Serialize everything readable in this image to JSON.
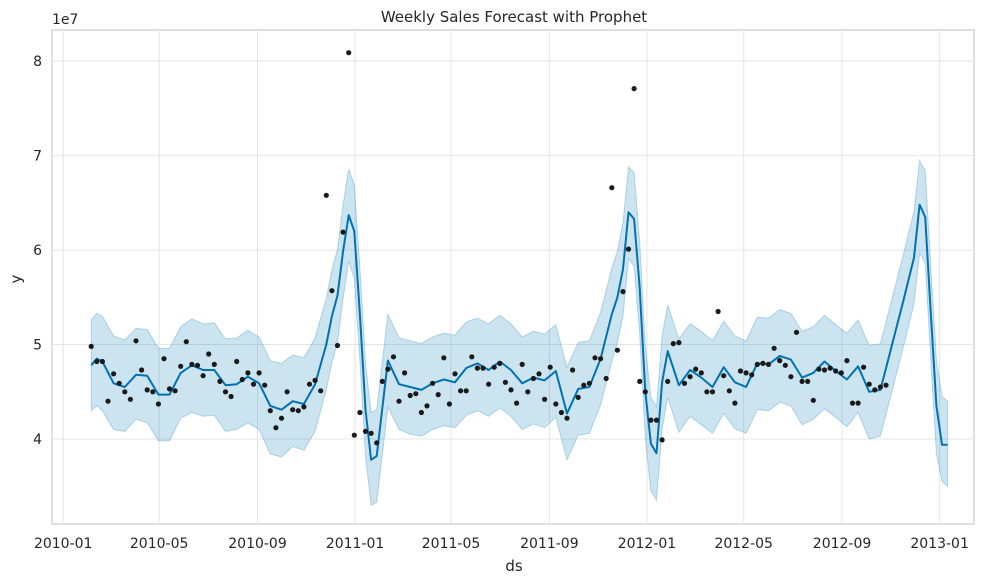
{
  "chart_data": {
    "type": "line",
    "title": "Weekly Sales Forecast with Prophet",
    "xlabel": "ds",
    "ylabel": "y",
    "y_offset_label": "1e7",
    "xlim": [
      "2009-12-18",
      "2013-02-13"
    ],
    "ylim": [
      3.1,
      8.33
    ],
    "grid": true,
    "x_tick_labels": [
      "2010-01",
      "2010-05",
      "2010-09",
      "2011-01",
      "2011-05",
      "2011-09",
      "2012-01",
      "2012-05",
      "2012-09",
      "2013-01"
    ],
    "x_tick_dates": [
      "2010-01-01",
      "2010-05-01",
      "2010-09-01",
      "2011-01-01",
      "2011-05-01",
      "2011-09-01",
      "2012-01-01",
      "2012-05-01",
      "2012-09-01",
      "2013-01-01"
    ],
    "y_ticks": [
      4,
      5,
      6,
      7,
      8
    ],
    "colors": {
      "forecast_line": "#0072b2",
      "interval_fill": "#0072b2",
      "actual_points": "#1a1a1a",
      "grid": "#e5e5e5",
      "axes": "#cccccc"
    },
    "series": [
      {
        "kind": "actual",
        "x": [
          "2010-02-05",
          "2010-02-12",
          "2010-02-19",
          "2010-02-26",
          "2010-03-05",
          "2010-03-12",
          "2010-03-19",
          "2010-03-26",
          "2010-04-02",
          "2010-04-09",
          "2010-04-16",
          "2010-04-23",
          "2010-04-30",
          "2010-05-07",
          "2010-05-14",
          "2010-05-21",
          "2010-05-28",
          "2010-06-04",
          "2010-06-11",
          "2010-06-18",
          "2010-06-25",
          "2010-07-02",
          "2010-07-09",
          "2010-07-16",
          "2010-07-23",
          "2010-07-30",
          "2010-08-06",
          "2010-08-13",
          "2010-08-20",
          "2010-08-27",
          "2010-09-03",
          "2010-09-10",
          "2010-09-17",
          "2010-09-24",
          "2010-10-01",
          "2010-10-08",
          "2010-10-15",
          "2010-10-22",
          "2010-10-29",
          "2010-11-05",
          "2010-11-12",
          "2010-11-19",
          "2010-11-26",
          "2010-12-03",
          "2010-12-10",
          "2010-12-17",
          "2010-12-24",
          "2010-12-31",
          "2011-01-07",
          "2011-01-14",
          "2011-01-21",
          "2011-01-28",
          "2011-02-04",
          "2011-02-11",
          "2011-02-18",
          "2011-02-25",
          "2011-03-04",
          "2011-03-11",
          "2011-03-18",
          "2011-03-25",
          "2011-04-01",
          "2011-04-08",
          "2011-04-15",
          "2011-04-22",
          "2011-04-29",
          "2011-05-06",
          "2011-05-13",
          "2011-05-20",
          "2011-05-27",
          "2011-06-03",
          "2011-06-10",
          "2011-06-17",
          "2011-06-24",
          "2011-07-01",
          "2011-07-08",
          "2011-07-15",
          "2011-07-22",
          "2011-07-29",
          "2011-08-05",
          "2011-08-12",
          "2011-08-19",
          "2011-08-26",
          "2011-09-02",
          "2011-09-09",
          "2011-09-16",
          "2011-09-23",
          "2011-09-30",
          "2011-10-07",
          "2011-10-14",
          "2011-10-21",
          "2011-10-28",
          "2011-11-04",
          "2011-11-11",
          "2011-11-18",
          "2011-11-25",
          "2011-12-02",
          "2011-12-09",
          "2011-12-16",
          "2011-12-23",
          "2011-12-30",
          "2012-01-06",
          "2012-01-13",
          "2012-01-20",
          "2012-01-27",
          "2012-02-03",
          "2012-02-10",
          "2012-02-17",
          "2012-02-24",
          "2012-03-02",
          "2012-03-09",
          "2012-03-16",
          "2012-03-23",
          "2012-03-30",
          "2012-04-06",
          "2012-04-13",
          "2012-04-20",
          "2012-04-27",
          "2012-05-04",
          "2012-05-11",
          "2012-05-18",
          "2012-05-25",
          "2012-06-01",
          "2012-06-08",
          "2012-06-15",
          "2012-06-22",
          "2012-06-29",
          "2012-07-06",
          "2012-07-13",
          "2012-07-20",
          "2012-07-27",
          "2012-08-03",
          "2012-08-10",
          "2012-08-17",
          "2012-08-24",
          "2012-08-31",
          "2012-09-07",
          "2012-09-14",
          "2012-09-21",
          "2012-09-28",
          "2012-10-05",
          "2012-10-12",
          "2012-10-19",
          "2012-10-26"
        ],
        "y": [
          4.98,
          4.82,
          4.82,
          4.4,
          4.69,
          4.59,
          4.5,
          4.42,
          5.04,
          4.73,
          4.52,
          4.5,
          4.37,
          4.85,
          4.53,
          4.51,
          4.77,
          5.03,
          4.79,
          4.78,
          4.67,
          4.9,
          4.79,
          4.61,
          4.5,
          4.45,
          4.82,
          4.63,
          4.7,
          4.58,
          4.7,
          4.57,
          4.3,
          4.12,
          4.22,
          4.5,
          4.31,
          4.3,
          4.34,
          4.58,
          4.62,
          4.51,
          6.58,
          5.57,
          4.99,
          6.19,
          8.09,
          4.04,
          4.28,
          4.08,
          4.06,
          3.96,
          4.61,
          4.74,
          4.87,
          4.4,
          4.7,
          4.46,
          4.48,
          4.28,
          4.35,
          4.59,
          4.47,
          4.86,
          4.37,
          4.69,
          4.51,
          4.51,
          4.87,
          4.75,
          4.75,
          4.58,
          4.76,
          4.8,
          4.6,
          4.52,
          4.38,
          4.79,
          4.5,
          4.64,
          4.69,
          4.42,
          4.76,
          4.37,
          4.28,
          4.22,
          4.73,
          4.44,
          4.57,
          4.59,
          4.86,
          4.85,
          4.64,
          6.66,
          4.94,
          5.56,
          6.01,
          7.71,
          4.61,
          4.5,
          4.2,
          4.2,
          3.99,
          4.61,
          5.01,
          5.02,
          4.59,
          4.66,
          4.74,
          4.7,
          4.5,
          4.5,
          5.35,
          4.67,
          4.51,
          4.38,
          4.72,
          4.7,
          4.68,
          4.79,
          4.8,
          4.79,
          4.96,
          4.83,
          4.78,
          4.66,
          5.13,
          4.61,
          4.61,
          4.41,
          4.74,
          4.73,
          4.75,
          4.72,
          4.7,
          4.83,
          4.38,
          4.38,
          4.76,
          4.58,
          4.52,
          4.55,
          4.57
        ]
      },
      {
        "kind": "forecast",
        "x": [
          "2010-02-05",
          "2010-02-12",
          "2010-02-19",
          "2010-03-05",
          "2010-03-19",
          "2010-04-02",
          "2010-04-16",
          "2010-04-30",
          "2010-05-14",
          "2010-05-28",
          "2010-06-11",
          "2010-06-25",
          "2010-07-09",
          "2010-07-23",
          "2010-08-06",
          "2010-08-20",
          "2010-09-03",
          "2010-09-17",
          "2010-10-01",
          "2010-10-15",
          "2010-10-29",
          "2010-11-12",
          "2010-11-26",
          "2010-12-03",
          "2010-12-10",
          "2010-12-17",
          "2010-12-24",
          "2010-12-31",
          "2011-01-07",
          "2011-01-14",
          "2011-01-21",
          "2011-01-28",
          "2011-02-11",
          "2011-02-25",
          "2011-03-11",
          "2011-03-25",
          "2011-04-08",
          "2011-04-22",
          "2011-05-06",
          "2011-05-20",
          "2011-06-03",
          "2011-06-17",
          "2011-07-01",
          "2011-07-15",
          "2011-07-29",
          "2011-08-12",
          "2011-08-26",
          "2011-09-09",
          "2011-09-23",
          "2011-10-07",
          "2011-10-21",
          "2011-11-04",
          "2011-11-18",
          "2011-11-25",
          "2011-12-02",
          "2011-12-09",
          "2011-12-16",
          "2011-12-23",
          "2011-12-30",
          "2012-01-06",
          "2012-01-13",
          "2012-01-20",
          "2012-01-27",
          "2012-02-10",
          "2012-02-24",
          "2012-03-09",
          "2012-03-23",
          "2012-04-06",
          "2012-04-20",
          "2012-05-04",
          "2012-05-18",
          "2012-06-01",
          "2012-06-15",
          "2012-06-29",
          "2012-07-13",
          "2012-07-27",
          "2012-08-10",
          "2012-08-24",
          "2012-09-07",
          "2012-09-21",
          "2012-10-05",
          "2012-10-19",
          "2012-11-02",
          "2012-11-16",
          "2012-11-30",
          "2012-12-07",
          "2012-12-14",
          "2012-12-21",
          "2012-12-28",
          "2013-01-04",
          "2013-01-11"
        ],
        "y": [
          4.78,
          4.85,
          4.82,
          4.59,
          4.55,
          4.68,
          4.67,
          4.47,
          4.47,
          4.7,
          4.78,
          4.73,
          4.73,
          4.57,
          4.58,
          4.66,
          4.59,
          4.35,
          4.31,
          4.4,
          4.37,
          4.58,
          5.0,
          5.3,
          5.52,
          5.99,
          6.37,
          6.2,
          5.32,
          4.31,
          3.78,
          3.82,
          4.83,
          4.58,
          4.55,
          4.52,
          4.59,
          4.63,
          4.6,
          4.75,
          4.8,
          4.73,
          4.82,
          4.73,
          4.59,
          4.65,
          4.62,
          4.72,
          4.27,
          4.53,
          4.55,
          4.85,
          5.32,
          5.5,
          5.8,
          6.4,
          6.33,
          5.6,
          4.5,
          3.95,
          3.85,
          4.6,
          4.93,
          4.57,
          4.73,
          4.65,
          4.55,
          4.76,
          4.6,
          4.55,
          4.8,
          4.79,
          4.88,
          4.84,
          4.65,
          4.7,
          4.82,
          4.72,
          4.63,
          4.77,
          4.5,
          4.52,
          4.98,
          5.44,
          5.92,
          6.48,
          6.35,
          5.33,
          4.35,
          3.94,
          3.94
        ]
      },
      {
        "kind": "interval",
        "x": [
          "2010-02-05",
          "2010-02-12",
          "2010-02-19",
          "2010-03-05",
          "2010-03-19",
          "2010-04-02",
          "2010-04-16",
          "2010-04-30",
          "2010-05-14",
          "2010-05-28",
          "2010-06-11",
          "2010-06-25",
          "2010-07-09",
          "2010-07-23",
          "2010-08-06",
          "2010-08-20",
          "2010-09-03",
          "2010-09-17",
          "2010-10-01",
          "2010-10-15",
          "2010-10-29",
          "2010-11-12",
          "2010-11-26",
          "2010-12-03",
          "2010-12-10",
          "2010-12-17",
          "2010-12-24",
          "2010-12-31",
          "2011-01-07",
          "2011-01-14",
          "2011-01-21",
          "2011-01-28",
          "2011-02-11",
          "2011-02-25",
          "2011-03-11",
          "2011-03-25",
          "2011-04-08",
          "2011-04-22",
          "2011-05-06",
          "2011-05-20",
          "2011-06-03",
          "2011-06-17",
          "2011-07-01",
          "2011-07-15",
          "2011-07-29",
          "2011-08-12",
          "2011-08-26",
          "2011-09-09",
          "2011-09-23",
          "2011-10-07",
          "2011-10-21",
          "2011-11-04",
          "2011-11-18",
          "2011-11-25",
          "2011-12-02",
          "2011-12-09",
          "2011-12-16",
          "2011-12-23",
          "2011-12-30",
          "2012-01-06",
          "2012-01-13",
          "2012-01-20",
          "2012-01-27",
          "2012-02-10",
          "2012-02-24",
          "2012-03-09",
          "2012-03-23",
          "2012-04-06",
          "2012-04-20",
          "2012-05-04",
          "2012-05-18",
          "2012-06-01",
          "2012-06-15",
          "2012-06-29",
          "2012-07-13",
          "2012-07-27",
          "2012-08-10",
          "2012-08-24",
          "2012-09-07",
          "2012-09-21",
          "2012-10-05",
          "2012-10-19",
          "2012-11-02",
          "2012-11-16",
          "2012-11-30",
          "2012-12-07",
          "2012-12-14",
          "2012-12-21",
          "2012-12-28",
          "2013-01-04",
          "2013-01-11"
        ],
        "lower": [
          4.3,
          4.35,
          4.3,
          4.1,
          4.08,
          4.21,
          4.17,
          3.98,
          3.98,
          4.22,
          4.28,
          4.24,
          4.25,
          4.08,
          4.1,
          4.17,
          4.1,
          3.84,
          3.81,
          3.92,
          3.88,
          4.08,
          4.52,
          4.81,
          5.02,
          5.49,
          5.88,
          5.7,
          4.83,
          3.82,
          3.3,
          3.33,
          4.34,
          4.1,
          4.05,
          4.03,
          4.1,
          4.14,
          4.12,
          4.25,
          4.3,
          4.24,
          4.33,
          4.24,
          4.1,
          4.16,
          4.12,
          4.23,
          3.78,
          4.04,
          4.06,
          4.36,
          4.82,
          5.02,
          5.3,
          5.91,
          5.83,
          5.12,
          4.01,
          3.45,
          3.35,
          4.1,
          4.44,
          4.07,
          4.24,
          4.15,
          4.06,
          4.27,
          4.11,
          4.06,
          4.31,
          4.3,
          4.39,
          4.35,
          4.15,
          4.21,
          4.32,
          4.23,
          4.13,
          4.28,
          4.0,
          4.03,
          4.49,
          4.95,
          5.43,
          5.97,
          5.87,
          4.84,
          3.85,
          3.55,
          3.5
        ],
        "upper": [
          5.26,
          5.33,
          5.3,
          5.09,
          5.05,
          5.17,
          5.16,
          4.96,
          4.96,
          5.19,
          5.27,
          5.22,
          5.23,
          5.06,
          5.07,
          5.15,
          5.08,
          4.83,
          4.8,
          4.89,
          4.86,
          5.07,
          5.49,
          5.79,
          6.01,
          6.48,
          6.86,
          6.69,
          5.81,
          4.8,
          4.28,
          4.31,
          5.32,
          5.07,
          5.04,
          5.01,
          5.08,
          5.12,
          5.1,
          5.24,
          5.28,
          5.22,
          5.31,
          5.22,
          5.08,
          5.14,
          5.11,
          5.21,
          4.76,
          5.02,
          5.04,
          5.34,
          5.81,
          5.99,
          6.29,
          6.88,
          6.82,
          6.09,
          4.99,
          4.44,
          4.34,
          5.09,
          5.42,
          5.06,
          5.22,
          5.14,
          5.04,
          5.25,
          5.09,
          5.04,
          5.29,
          5.28,
          5.37,
          5.33,
          5.14,
          5.19,
          5.31,
          5.21,
          5.12,
          5.26,
          4.99,
          5.01,
          5.47,
          5.93,
          6.41,
          6.95,
          6.84,
          5.82,
          4.84,
          4.45,
          4.4
        ]
      }
    ]
  }
}
